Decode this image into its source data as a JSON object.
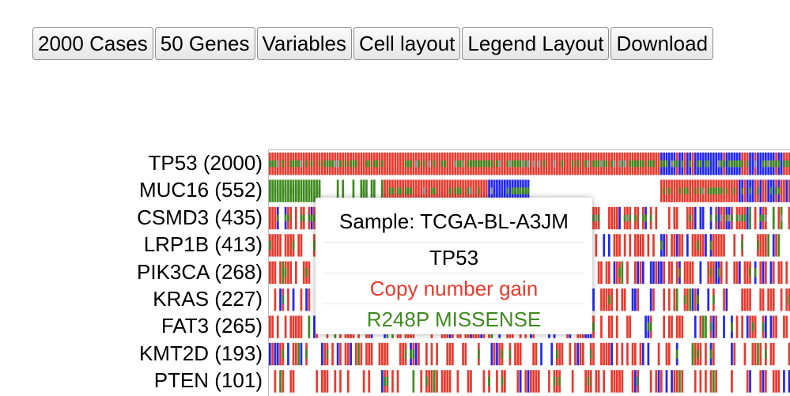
{
  "toolbar": {
    "cases": "2000 Cases",
    "genes": "50 Genes",
    "variables": "Variables",
    "cell_layout": "Cell layout",
    "legend_layout": "Legend Layout",
    "download": "Download"
  },
  "genes": [
    {
      "label": "TP53 (2000)"
    },
    {
      "label": "MUC16 (552)"
    },
    {
      "label": "CSMD3 (435)"
    },
    {
      "label": "LRP1B (413)"
    },
    {
      "label": "PIK3CA (268)"
    },
    {
      "label": "KRAS (227)"
    },
    {
      "label": "FAT3 (265)"
    },
    {
      "label": "KMT2D (193)"
    },
    {
      "label": "PTEN (101)"
    }
  ],
  "colors": {
    "gain": "#e8392d",
    "loss": "#1f26f5",
    "missense": "#3f8a1f",
    "other": "#8a8a8a",
    "background": "#ffffff"
  },
  "tooltip": {
    "sample": "Sample: TCGA-BL-A3JM",
    "gene": "TP53",
    "cnv": "Copy number gain",
    "mutation": "R248P MISSENSE",
    "cnv_color": "#e8392d",
    "mutation_color": "#3f8a1f"
  }
}
